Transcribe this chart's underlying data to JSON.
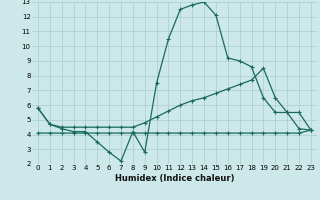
{
  "xlabel": "Humidex (Indice chaleur)",
  "xlim": [
    -0.5,
    23.5
  ],
  "ylim": [
    2,
    13
  ],
  "xticks": [
    0,
    1,
    2,
    3,
    4,
    5,
    6,
    7,
    8,
    9,
    10,
    11,
    12,
    13,
    14,
    15,
    16,
    17,
    18,
    19,
    20,
    21,
    22,
    23
  ],
  "yticks": [
    2,
    3,
    4,
    5,
    6,
    7,
    8,
    9,
    10,
    11,
    12,
    13
  ],
  "bg_color": "#cce8e8",
  "grid_color": "#aacccc",
  "line_color": "#1a6b5a",
  "line1_x": [
    0,
    1,
    2,
    3,
    4,
    5,
    6,
    7,
    8,
    9,
    10,
    11,
    12,
    13,
    14,
    15,
    16,
    17,
    18,
    19,
    20,
    21,
    22,
    23
  ],
  "line1_y": [
    5.8,
    4.7,
    4.4,
    4.2,
    4.2,
    3.5,
    2.8,
    2.2,
    4.2,
    2.8,
    7.5,
    10.5,
    12.5,
    12.8,
    13.0,
    12.1,
    9.2,
    9.0,
    8.6,
    6.5,
    5.5,
    5.5,
    4.4,
    4.3
  ],
  "line2_x": [
    0,
    1,
    2,
    3,
    4,
    5,
    6,
    7,
    8,
    9,
    10,
    11,
    12,
    13,
    14,
    15,
    16,
    17,
    18,
    19,
    20,
    21,
    22,
    23
  ],
  "line2_y": [
    4.1,
    4.1,
    4.1,
    4.1,
    4.1,
    4.1,
    4.1,
    4.1,
    4.1,
    4.1,
    4.1,
    4.1,
    4.1,
    4.1,
    4.1,
    4.1,
    4.1,
    4.1,
    4.1,
    4.1,
    4.1,
    4.1,
    4.1,
    4.3
  ],
  "line3_x": [
    0,
    1,
    2,
    3,
    4,
    5,
    6,
    7,
    8,
    9,
    10,
    11,
    12,
    13,
    14,
    15,
    16,
    17,
    18,
    19,
    20,
    21,
    22,
    23
  ],
  "line3_y": [
    5.8,
    4.7,
    4.5,
    4.5,
    4.5,
    4.5,
    4.5,
    4.5,
    4.5,
    4.8,
    5.2,
    5.6,
    6.0,
    6.3,
    6.5,
    6.8,
    7.1,
    7.4,
    7.7,
    8.5,
    6.5,
    5.5,
    5.5,
    4.3
  ]
}
